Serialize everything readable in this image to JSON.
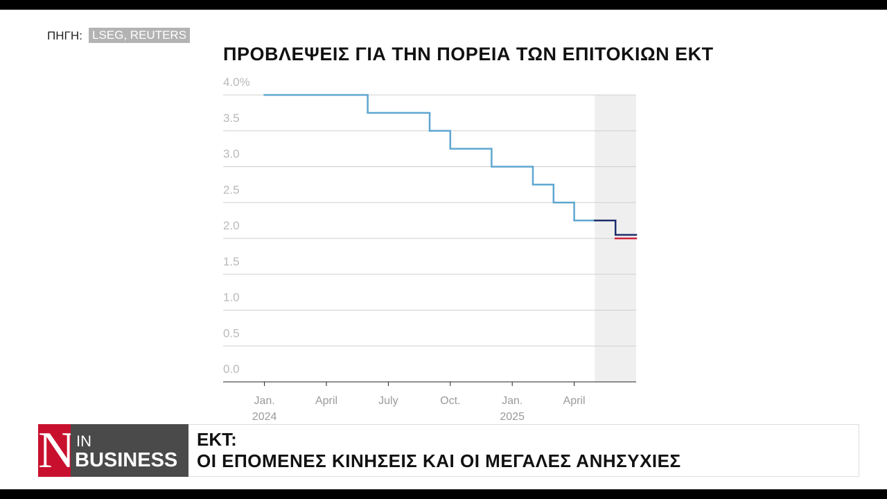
{
  "source_label": "ΠΗΓΗ:",
  "source": "LSEG, REUTERS",
  "chart_data": {
    "type": "step",
    "title": "ΠΡΟΒΛΕΨΕΙΣ ΓΙΑ ΤΗΝ ΠΟΡΕΙΑ ΤΩΝ ΕΠΙΤΟΚΙΩΝ ΕΚΤ",
    "xlim": [
      "2023-11",
      "2025-07"
    ],
    "xticks": [
      {
        "value": "2024-01",
        "label": "Jan.\n2024"
      },
      {
        "value": "2024-04",
        "label": "April"
      },
      {
        "value": "2024-07",
        "label": "July"
      },
      {
        "value": "2024-10",
        "label": "Oct."
      },
      {
        "value": "2025-01",
        "label": "Jan.\n2025"
      },
      {
        "value": "2025-04",
        "label": "April"
      }
    ],
    "ylim": [
      0,
      4
    ],
    "yticks": [
      {
        "value": 0,
        "label": "0.0"
      },
      {
        "value": 0.5,
        "label": "0.5"
      },
      {
        "value": 1,
        "label": "1.0"
      },
      {
        "value": 1.5,
        "label": "1.5"
      },
      {
        "value": 2,
        "label": "2.0"
      },
      {
        "value": 2.5,
        "label": "2.5"
      },
      {
        "value": 3,
        "label": "3.0"
      },
      {
        "value": 3.5,
        "label": "3.5"
      },
      {
        "value": 4,
        "label": "4.0%"
      }
    ],
    "grid": true,
    "forecast_shade": [
      "2025-05",
      "2025-07"
    ],
    "series": [
      {
        "color": "#5ea6d0",
        "forecast": false,
        "x": [
          "2024-01",
          "2024-06",
          "2024-09",
          "2024-10",
          "2024-12",
          "2025-02",
          "2025-03",
          "2025-04"
        ],
        "values": [
          4.0,
          3.75,
          3.5,
          3.25,
          3.0,
          2.75,
          2.5,
          2.25
        ]
      },
      {
        "color": "#1d2d6b",
        "forecast": true,
        "x": [
          "2025-05",
          "2025-06"
        ],
        "values": [
          2.25,
          2.05
        ]
      },
      {
        "color": "#d0213a",
        "forecast": true,
        "x": [
          "2025-06"
        ],
        "values": [
          2.0
        ]
      }
    ]
  },
  "banner": {
    "logo": "N",
    "brand_top": "IN",
    "brand_bottom": "BUSINESS",
    "headline": "ΕΚΤ:",
    "subheadline": "ΟΙ ΕΠΟΜΕΝΕΣ ΚΙΝΗΣΕΙΣ ΚΑΙ ΟΙ ΜΕΓΑΛΕΣ ΑΝΗΣΥΧΙΕΣ"
  }
}
